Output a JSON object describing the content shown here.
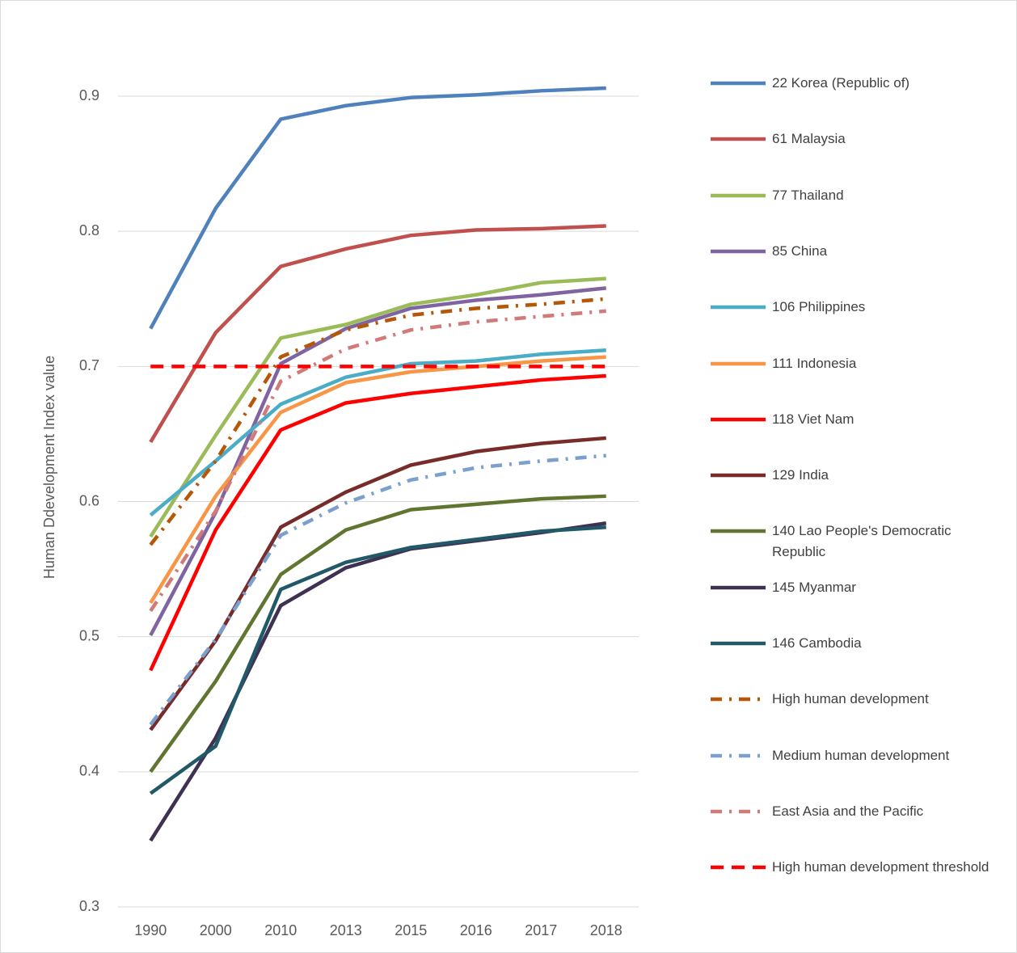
{
  "chart_data": {
    "type": "line",
    "y_label": "Human Ddevelopment Index value",
    "categories": [
      "1990",
      "2000",
      "2010",
      "2013",
      "2015",
      "2016",
      "2017",
      "2018"
    ],
    "ylim": [
      0.3,
      0.9
    ],
    "yticks": [
      0.3,
      0.4,
      0.5,
      0.6,
      0.7,
      0.8,
      0.9
    ],
    "grid": true,
    "legend": "right",
    "series": [
      {
        "name": "22 Korea (Republic of)",
        "color": "#4f81bd",
        "dash": "solid",
        "values": [
          0.728,
          0.817,
          0.883,
          0.893,
          0.899,
          0.901,
          0.904,
          0.906
        ]
      },
      {
        "name": "61 Malaysia",
        "color": "#c0504d",
        "dash": "solid",
        "values": [
          0.644,
          0.725,
          0.774,
          0.787,
          0.797,
          0.801,
          0.802,
          0.804
        ]
      },
      {
        "name": "77 Thailand",
        "color": "#9bbb59",
        "dash": "solid",
        "values": [
          0.574,
          0.649,
          0.721,
          0.731,
          0.746,
          0.753,
          0.762,
          0.765
        ]
      },
      {
        "name": "85 China",
        "color": "#8064a2",
        "dash": "solid",
        "values": [
          0.501,
          0.592,
          0.702,
          0.728,
          0.743,
          0.749,
          0.753,
          0.758
        ]
      },
      {
        "name": "106 Philippines",
        "color": "#4bacc6",
        "dash": "solid",
        "values": [
          0.59,
          0.63,
          0.672,
          0.692,
          0.702,
          0.704,
          0.709,
          0.712
        ]
      },
      {
        "name": "111 Indonesia",
        "color": "#f79646",
        "dash": "solid",
        "values": [
          0.525,
          0.604,
          0.666,
          0.688,
          0.696,
          0.7,
          0.704,
          0.707
        ]
      },
      {
        "name": "118 Viet Nam",
        "color": "#ff0000",
        "dash": "solid",
        "values": [
          0.475,
          0.579,
          0.653,
          0.673,
          0.68,
          0.685,
          0.69,
          0.693
        ]
      },
      {
        "name": "129 India",
        "color": "#772c2a",
        "dash": "solid",
        "values": [
          0.431,
          0.497,
          0.581,
          0.607,
          0.627,
          0.637,
          0.643,
          0.647
        ]
      },
      {
        "name": "140 Lao People's Democratic Republic",
        "color": "#5f7530",
        "dash": "solid",
        "values": [
          0.4,
          0.467,
          0.546,
          0.579,
          0.594,
          0.598,
          0.602,
          0.604
        ]
      },
      {
        "name": "145 Myanmar",
        "color": "#3f3151",
        "dash": "solid",
        "values": [
          0.349,
          0.425,
          0.523,
          0.551,
          0.565,
          0.571,
          0.577,
          0.584
        ]
      },
      {
        "name": "146 Cambodia",
        "color": "#215968",
        "dash": "solid",
        "values": [
          0.384,
          0.419,
          0.535,
          0.555,
          0.566,
          0.572,
          0.578,
          0.581
        ]
      },
      {
        "name": "High human development",
        "color": "#b65708",
        "dash": "dashdot",
        "values": [
          0.568,
          0.63,
          0.707,
          0.727,
          0.738,
          0.743,
          0.746,
          0.75
        ]
      },
      {
        "name": "Medium human development",
        "color": "#7ba0cd",
        "dash": "dashdot",
        "values": [
          0.435,
          0.498,
          0.575,
          0.599,
          0.616,
          0.625,
          0.63,
          0.634
        ]
      },
      {
        "name": "East Asia and the Pacific",
        "color": "#d17a7a",
        "dash": "dashdot",
        "values": [
          0.519,
          0.593,
          0.689,
          0.713,
          0.727,
          0.733,
          0.737,
          0.741
        ]
      },
      {
        "name": "High human development threshold",
        "color": "#ff0000",
        "dash": "dash",
        "values": [
          0.7,
          0.7,
          0.7,
          0.7,
          0.7,
          0.7,
          0.7,
          0.7
        ]
      }
    ]
  }
}
